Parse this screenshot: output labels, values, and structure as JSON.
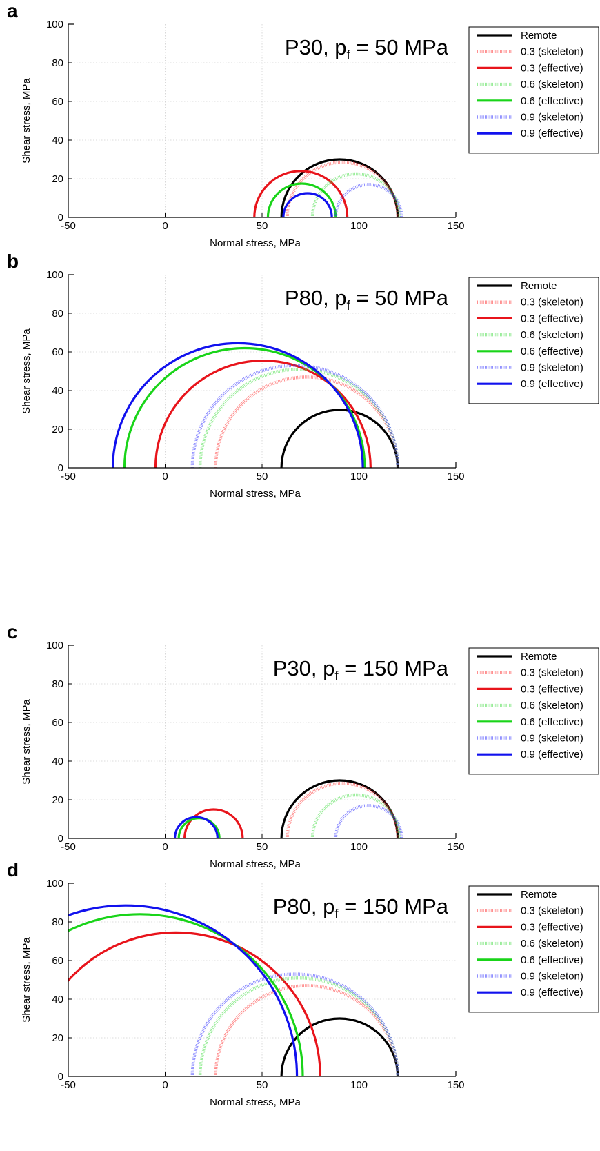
{
  "chart_data": [
    {
      "panel": "a",
      "type": "line",
      "annotation": {
        "main": "P30, p",
        "sub": "f",
        "tail": " = 50 MPa"
      },
      "xlabel": "Normal stress, MPa",
      "ylabel": "Shear stress, MPa",
      "xlim": [
        -50,
        150
      ],
      "ylim": [
        0,
        100
      ],
      "xticks": [
        -50,
        0,
        50,
        100,
        150
      ],
      "yticks": [
        0,
        20,
        40,
        60,
        80,
        100
      ],
      "grid": true,
      "legend_position": "outside-right-top",
      "series": [
        {
          "name": "Remote",
          "color": "#000000",
          "style": "solid",
          "sigma_min": 60,
          "sigma_max": 120
        },
        {
          "name": "0.3 (skeleton)",
          "color": "#ff3333",
          "style": "dotted",
          "sigma_min": 63,
          "sigma_max": 120
        },
        {
          "name": "0.3 (effective)",
          "color": "#e8141b",
          "style": "solid",
          "sigma_min": 46,
          "sigma_max": 94
        },
        {
          "name": "0.6 (skeleton)",
          "color": "#44dd44",
          "style": "dotted",
          "sigma_min": 76,
          "sigma_max": 121
        },
        {
          "name": "0.6 (effective)",
          "color": "#19d419",
          "style": "solid",
          "sigma_min": 53,
          "sigma_max": 88
        },
        {
          "name": "0.9 (skeleton)",
          "color": "#3333ff",
          "style": "dotted",
          "sigma_min": 88,
          "sigma_max": 122
        },
        {
          "name": "0.9 (effective)",
          "color": "#1111ee",
          "style": "solid",
          "sigma_min": 61,
          "sigma_max": 86
        }
      ]
    },
    {
      "panel": "b",
      "type": "line",
      "annotation": {
        "main": "P80, p",
        "sub": "f",
        "tail": " = 50 MPa"
      },
      "xlabel": "Normal stress, MPa",
      "ylabel": "Shear stress, MPa",
      "xlim": [
        -50,
        150
      ],
      "ylim": [
        0,
        100
      ],
      "xticks": [
        -50,
        0,
        50,
        100,
        150
      ],
      "yticks": [
        0,
        20,
        40,
        60,
        80,
        100
      ],
      "grid": true,
      "legend_position": "outside-right-top",
      "series": [
        {
          "name": "Remote",
          "color": "#000000",
          "style": "solid",
          "sigma_min": 60,
          "sigma_max": 120
        },
        {
          "name": "0.3 (skeleton)",
          "color": "#ff3333",
          "style": "dotted",
          "sigma_min": 26,
          "sigma_max": 120
        },
        {
          "name": "0.3 (effective)",
          "color": "#e8141b",
          "style": "solid",
          "sigma_min": -5,
          "sigma_max": 106
        },
        {
          "name": "0.6 (skeleton)",
          "color": "#44dd44",
          "style": "dotted",
          "sigma_min": 18,
          "sigma_max": 120
        },
        {
          "name": "0.6 (effective)",
          "color": "#19d419",
          "style": "solid",
          "sigma_min": -21,
          "sigma_max": 103
        },
        {
          "name": "0.9 (skeleton)",
          "color": "#3333ff",
          "style": "dotted",
          "sigma_min": 14,
          "sigma_max": 120
        },
        {
          "name": "0.9 (effective)",
          "color": "#1111ee",
          "style": "solid",
          "sigma_min": -27,
          "sigma_max": 102
        }
      ]
    },
    {
      "panel": "c",
      "type": "line",
      "annotation": {
        "main": "P30, p",
        "sub": "f",
        "tail": " = 150 MPa"
      },
      "xlabel": "Normal stress, MPa",
      "ylabel": "Shear stress, MPa",
      "xlim": [
        -50,
        150
      ],
      "ylim": [
        0,
        100
      ],
      "xticks": [
        -50,
        0,
        50,
        100,
        150
      ],
      "yticks": [
        0,
        20,
        40,
        60,
        80,
        100
      ],
      "grid": true,
      "legend_position": "outside-right-top",
      "series": [
        {
          "name": "Remote",
          "color": "#000000",
          "style": "solid",
          "sigma_min": 60,
          "sigma_max": 120
        },
        {
          "name": "0.3 (skeleton)",
          "color": "#ff3333",
          "style": "dotted",
          "sigma_min": 63,
          "sigma_max": 120
        },
        {
          "name": "0.3 (effective)",
          "color": "#e8141b",
          "style": "solid",
          "sigma_min": 10,
          "sigma_max": 40
        },
        {
          "name": "0.6 (skeleton)",
          "color": "#44dd44",
          "style": "dotted",
          "sigma_min": 76,
          "sigma_max": 121
        },
        {
          "name": "0.6 (effective)",
          "color": "#19d419",
          "style": "solid",
          "sigma_min": 7,
          "sigma_max": 28
        },
        {
          "name": "0.9 (skeleton)",
          "color": "#3333ff",
          "style": "dotted",
          "sigma_min": 88,
          "sigma_max": 122
        },
        {
          "name": "0.9 (effective)",
          "color": "#1111ee",
          "style": "solid",
          "sigma_min": 5,
          "sigma_max": 27
        }
      ]
    },
    {
      "panel": "d",
      "type": "line",
      "annotation": {
        "main": "P80, p",
        "sub": "f",
        "tail": " = 150 MPa"
      },
      "xlabel": "Normal stress, MPa",
      "ylabel": "Shear stress, MPa",
      "xlim": [
        -50,
        150
      ],
      "ylim": [
        0,
        100
      ],
      "xticks": [
        -50,
        0,
        50,
        100,
        150
      ],
      "yticks": [
        0,
        20,
        40,
        60,
        80,
        100
      ],
      "grid": true,
      "legend_position": "outside-right-top",
      "series": [
        {
          "name": "Remote",
          "color": "#000000",
          "style": "solid",
          "sigma_min": 60,
          "sigma_max": 120
        },
        {
          "name": "0.3 (skeleton)",
          "color": "#ff3333",
          "style": "dotted",
          "sigma_min": 26,
          "sigma_max": 120
        },
        {
          "name": "0.3 (effective)",
          "color": "#e8141b",
          "style": "solid",
          "sigma_min": -69,
          "sigma_max": 80
        },
        {
          "name": "0.6 (skeleton)",
          "color": "#44dd44",
          "style": "dotted",
          "sigma_min": 18,
          "sigma_max": 120
        },
        {
          "name": "0.6 (effective)",
          "color": "#19d419",
          "style": "solid",
          "sigma_min": -97,
          "sigma_max": 71
        },
        {
          "name": "0.9 (skeleton)",
          "color": "#3333ff",
          "style": "dotted",
          "sigma_min": 14,
          "sigma_max": 120
        },
        {
          "name": "0.9 (effective)",
          "color": "#1111ee",
          "style": "solid",
          "sigma_min": -109,
          "sigma_max": 68
        }
      ]
    }
  ]
}
